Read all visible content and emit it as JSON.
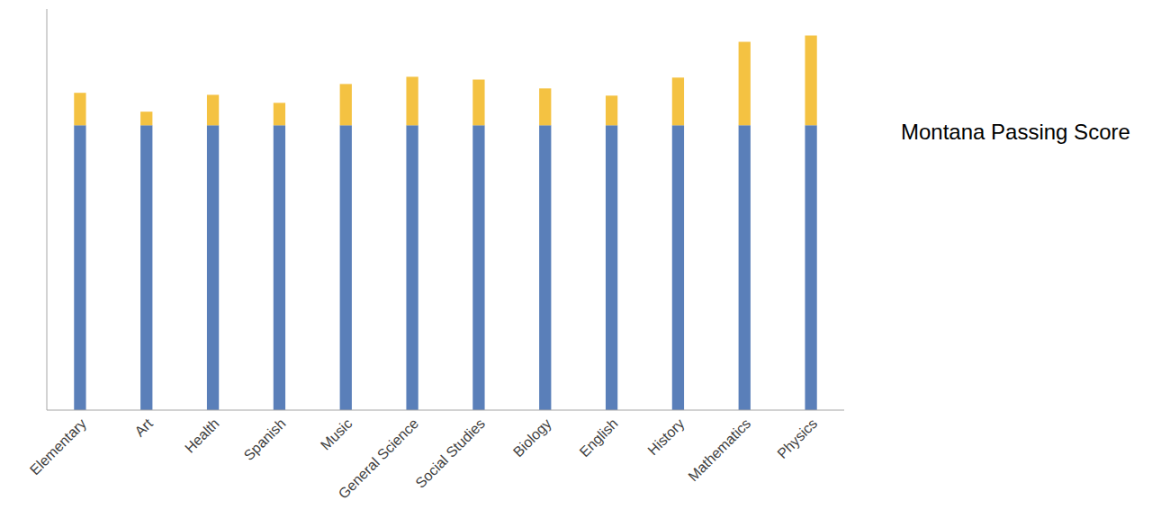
{
  "chart_data": {
    "type": "bar",
    "title": "Montana Passing Score",
    "categories": [
      "Elementary",
      "Art",
      "Health",
      "Spanish",
      "Music",
      "General Science",
      "Social Studies",
      "Biology",
      "English",
      "History",
      "Mathematics",
      "Physics"
    ],
    "series": [
      {
        "color": "#5a7fb9",
        "values": [
          71,
          71,
          71,
          71,
          71,
          71,
          71,
          71,
          71,
          71,
          71,
          71
        ]
      },
      {
        "color": "#f4c242",
        "values": [
          8.1,
          3.4,
          7.6,
          5.6,
          10.3,
          12.1,
          11.4,
          9.2,
          7.4,
          11.9,
          20.8,
          22.4
        ]
      }
    ],
    "ylim": [
      0,
      100
    ],
    "stacked": true,
    "tick_labels": "x"
  }
}
